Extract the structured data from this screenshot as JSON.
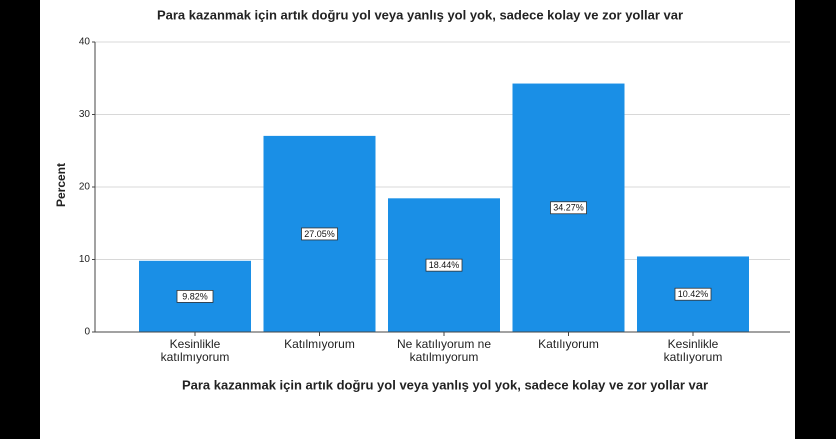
{
  "chart_data": {
    "type": "bar",
    "title": "Para kazanmak için artık doğru yol veya yanlış yol yok, sadece kolay ve zor yollar var",
    "x_label": "Para kazanmak için artık doğru yol veya yanlış yol yok, sadece kolay ve zor yollar var",
    "y_label": "Percent",
    "categories": [
      "Kesinlikle katılmıyorum",
      "Katılmıyorum",
      "Ne katılıyorum ne katılmıyorum",
      "Katılıyorum",
      "Kesinlikle katılıyorum"
    ],
    "values": [
      9.82,
      27.05,
      18.44,
      34.27,
      10.42
    ],
    "value_labels": [
      "9.82%",
      "27.05%",
      "18.44%",
      "34.27%",
      "10.42%"
    ],
    "color": "#1a8fe6",
    "ylim": [
      0,
      40
    ],
    "yticks": [
      0,
      10,
      20,
      30,
      40
    ],
    "grid": true
  }
}
